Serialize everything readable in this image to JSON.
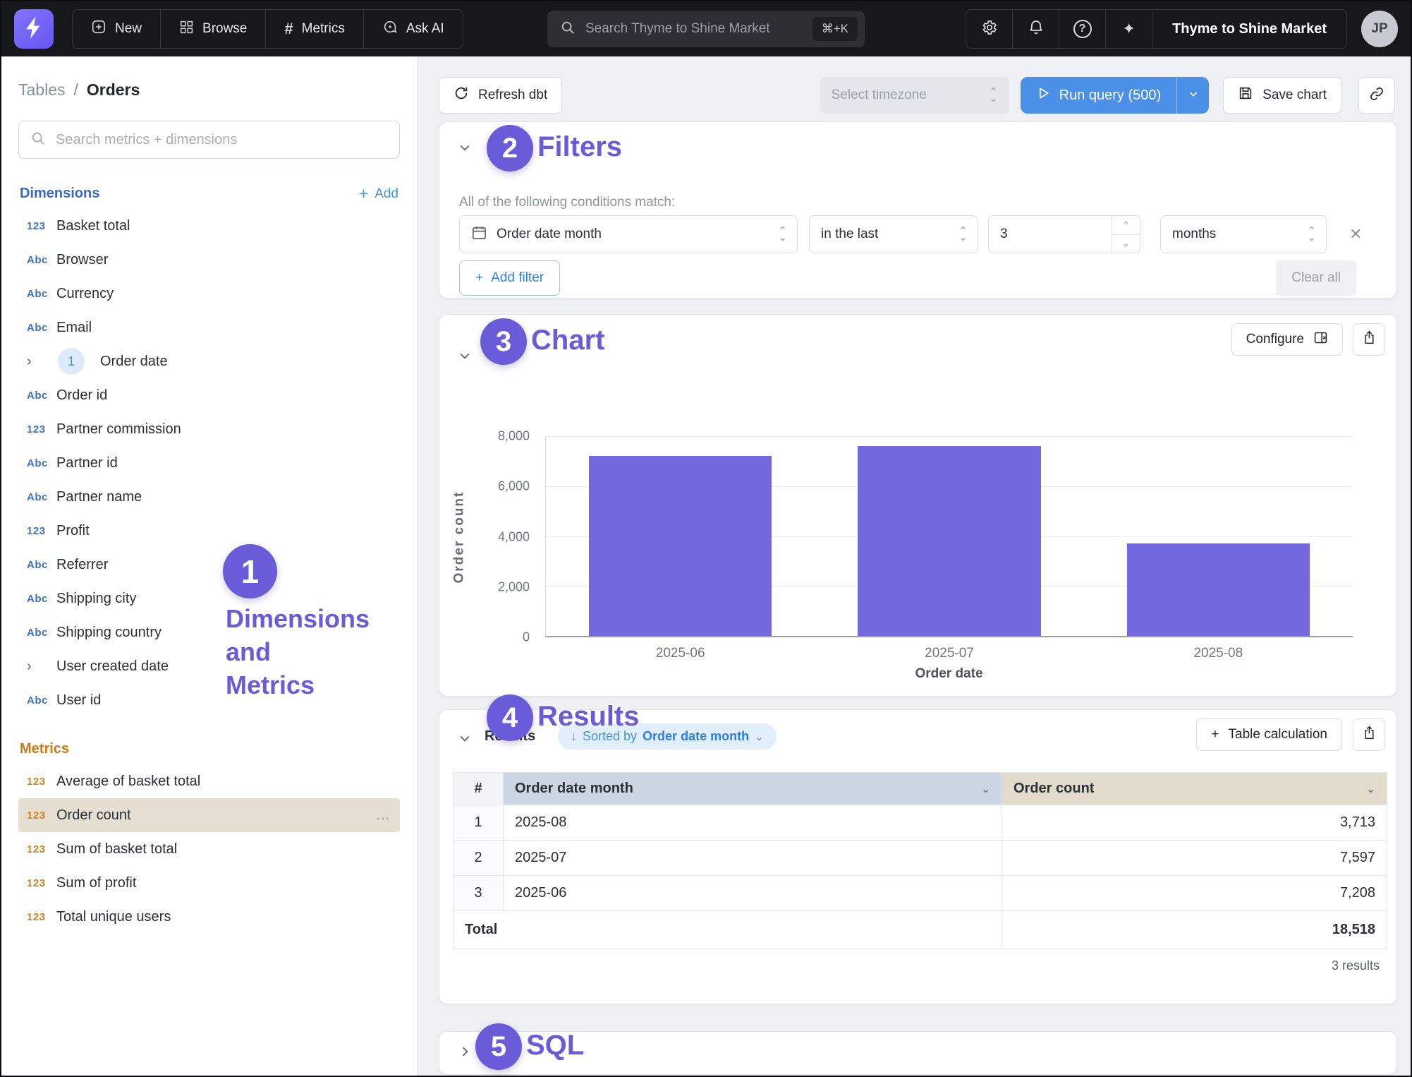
{
  "navbar": {
    "nav_items": [
      {
        "label": "New",
        "icon": "plus-square-icon"
      },
      {
        "label": "Browse",
        "icon": "grid-icon"
      },
      {
        "label": "Metrics",
        "icon": "hash-icon",
        "glyph": "#"
      },
      {
        "label": "Ask AI",
        "icon": "chat-sparkle-icon"
      }
    ],
    "search": {
      "placeholder": "Search Thyme to Shine Market",
      "shortcut": "⌘+K"
    },
    "help_glyph": "?",
    "sparkle_glyph": "✦",
    "org_name": "Thyme to Shine Market",
    "avatar_initials": "JP"
  },
  "sidebar": {
    "breadcrumb": {
      "parent": "Tables",
      "separator": "/",
      "current": "Orders"
    },
    "search_placeholder": "Search metrics + dimensions",
    "type_icons": {
      "number": "123",
      "string": "Abc"
    },
    "dimensions": {
      "header": "Dimensions",
      "add_label": "Add",
      "items": [
        {
          "label": "Basket total",
          "type": "number"
        },
        {
          "label": "Browser",
          "type": "string"
        },
        {
          "label": "Currency",
          "type": "string"
        },
        {
          "label": "Email",
          "type": "string"
        },
        {
          "label": "Order date",
          "type": "expand",
          "badge": "1"
        },
        {
          "label": "Order id",
          "type": "string"
        },
        {
          "label": "Partner commission",
          "type": "number"
        },
        {
          "label": "Partner id",
          "type": "string"
        },
        {
          "label": "Partner name",
          "type": "string"
        },
        {
          "label": "Profit",
          "type": "number"
        },
        {
          "label": "Referrer",
          "type": "string"
        },
        {
          "label": "Shipping city",
          "type": "string"
        },
        {
          "label": "Shipping country",
          "type": "string"
        },
        {
          "label": "User created date",
          "type": "expand"
        },
        {
          "label": "User id",
          "type": "string"
        }
      ]
    },
    "metrics": {
      "header": "Metrics",
      "items": [
        {
          "label": "Average of basket total",
          "type": "number",
          "selected": false
        },
        {
          "label": "Order count",
          "type": "number",
          "selected": true,
          "menu": "…"
        },
        {
          "label": "Sum of basket total",
          "type": "number",
          "selected": false
        },
        {
          "label": "Sum of profit",
          "type": "number",
          "selected": false
        },
        {
          "label": "Total unique users",
          "type": "number",
          "selected": false
        }
      ]
    }
  },
  "toolbar": {
    "refresh_label": "Refresh dbt",
    "timezone_placeholder": "Select timezone",
    "run_query_label": "Run query (500)",
    "save_chart_label": "Save chart"
  },
  "filters": {
    "title": "Filters",
    "condition_text": "All of the following conditions match:",
    "field": "Order date month",
    "operator": "in the last",
    "value": "3",
    "unit": "months",
    "add_filter_label": "Add filter",
    "clear_all_label": "Clear all"
  },
  "chart_section": {
    "title": "Chart",
    "configure_label": "Configure"
  },
  "chart_data": {
    "type": "bar",
    "categories": [
      "2025-06",
      "2025-07",
      "2025-08"
    ],
    "values": [
      7208,
      7597,
      3713
    ],
    "title": "",
    "xlabel": "Order date",
    "ylabel": "Order count",
    "ylim": [
      0,
      8000
    ],
    "yticks": [
      0,
      2000,
      4000,
      6000,
      8000
    ],
    "ytick_labels": [
      "0",
      "2,000",
      "4,000",
      "6,000",
      "8,000"
    ],
    "grid": true,
    "legend": false,
    "bar_color": "#7468df"
  },
  "results": {
    "title": "Results",
    "sorted_arrow": "↓",
    "sorted_prefix": "Sorted by",
    "sorted_field": "Order date month",
    "table_calculation_label": "Table calculation",
    "columns": [
      "#",
      "Order date month",
      "Order count"
    ],
    "rows": [
      {
        "index": "1",
        "month": "2025-08",
        "count": "3,713"
      },
      {
        "index": "2",
        "month": "2025-07",
        "count": "7,597"
      },
      {
        "index": "3",
        "month": "2025-06",
        "count": "7,208"
      }
    ],
    "total_label": "Total",
    "total_value": "18,518",
    "results_count": "3 results"
  },
  "sql_section": {
    "title": "SQL"
  },
  "annotations": {
    "a1": {
      "number": "1",
      "label": "Dimensions\nand\nMetrics"
    },
    "a2": {
      "number": "2",
      "label": "Filters"
    },
    "a3": {
      "number": "3",
      "label": "Chart"
    },
    "a4": {
      "number": "4",
      "label": "Results"
    },
    "a5": {
      "number": "5",
      "label": "SQL"
    }
  },
  "colors": {
    "accent_purple": "#6a5bd8",
    "bar_purple": "#7468df",
    "brand_blue": "#4a8fe8",
    "dimensions_blue": "#3a69c7",
    "metrics_orange": "#cf7911",
    "navbar_bg": "#17181c",
    "selected_metric_bg": "#e5dfd2",
    "month_header_bg": "#ccd6e3",
    "count_header_bg": "#e2dbcc"
  }
}
